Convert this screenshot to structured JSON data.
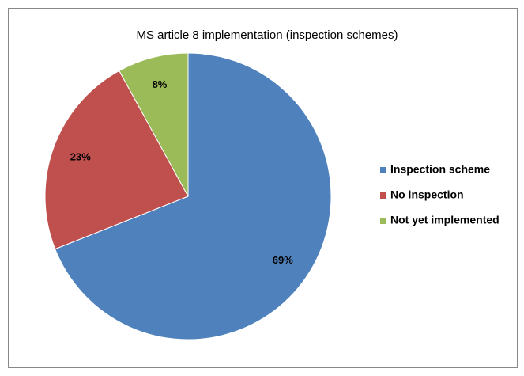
{
  "chart_data": {
    "type": "pie",
    "title": "MS article 8 implementation (inspection schemes)",
    "categories": [
      "Inspection scheme",
      "No inspection",
      "Not yet implemented"
    ],
    "values": [
      69,
      23,
      8
    ],
    "value_labels": [
      "69%",
      "23%",
      "8%"
    ],
    "colors": [
      "#4f81bd",
      "#c0504d",
      "#9bbb59"
    ],
    "legend": "right"
  }
}
